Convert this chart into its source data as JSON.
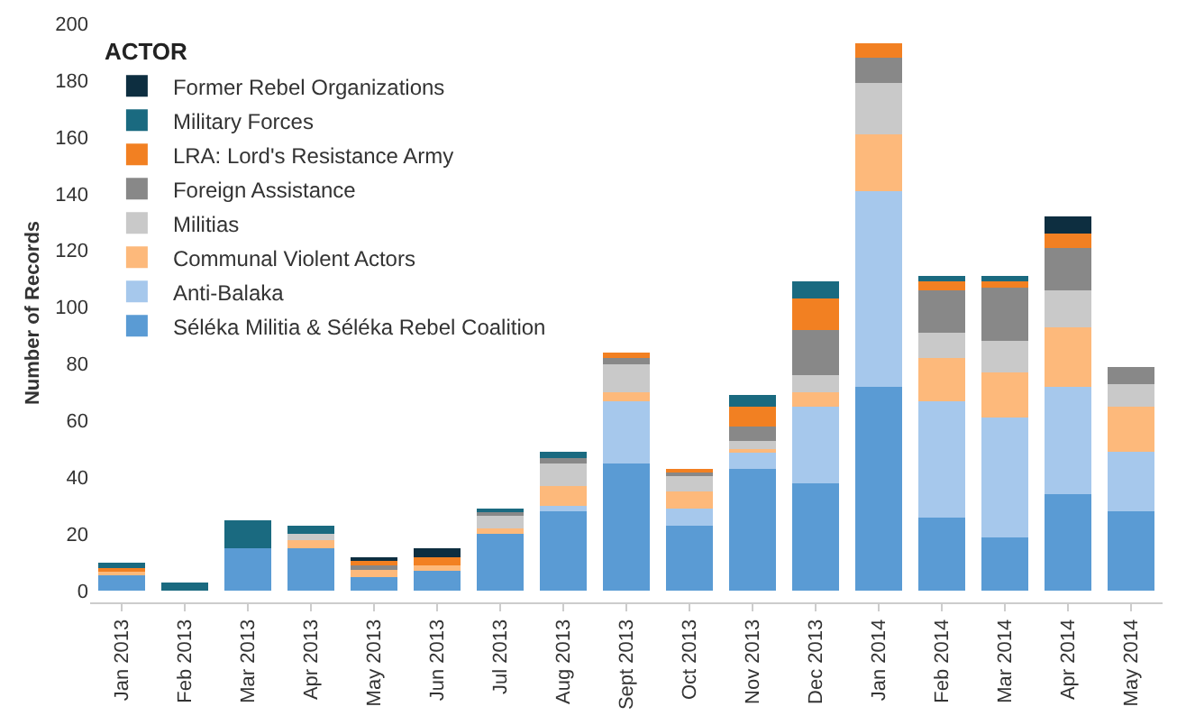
{
  "chart_data": {
    "type": "bar",
    "stacked": true,
    "ylabel": "Number of Records",
    "legend_title": "ACTOR",
    "legend": "top left",
    "grid": false,
    "categories": [
      "Jan 2013",
      "Feb 2013",
      "Mar 2013",
      "Apr 2013",
      "May 2013",
      "Jun 2013",
      "Jul 2013",
      "Aug 2013",
      "Sept 2013",
      "Oct 2013",
      "Nov 2013",
      "Dec 2013",
      "Jan 2014",
      "Feb 2014",
      "Mar 2014",
      "Apr 2014",
      "May 2014"
    ],
    "ylim": [
      -4,
      200
    ],
    "yticks": [
      0,
      20,
      40,
      60,
      80,
      100,
      120,
      140,
      160,
      180,
      200
    ],
    "series": [
      {
        "name": "Séléka Militia & Séléka Rebel Coalition",
        "color": "#5a9bd4",
        "values": [
          6,
          0,
          15,
          15,
          5,
          7,
          20,
          28,
          45,
          23,
          43,
          38,
          72,
          26,
          19,
          34,
          28
        ]
      },
      {
        "name": "Anti-Balaka",
        "color": "#a6c8ec",
        "values": [
          0,
          0,
          0,
          0,
          0,
          0,
          0,
          2,
          22,
          6,
          6,
          27,
          69,
          41,
          42,
          38,
          21
        ]
      },
      {
        "name": "Communal Violent Actors",
        "color": "#fdb97b",
        "values": [
          1,
          0,
          0,
          3,
          3,
          2,
          2,
          7,
          3,
          6,
          1,
          5,
          20,
          15,
          16,
          21,
          16
        ]
      },
      {
        "name": "Militias",
        "color": "#c9c9c9",
        "values": [
          0,
          0,
          0,
          2,
          0,
          0,
          5,
          8,
          10,
          6,
          3,
          6,
          18,
          9,
          11,
          13,
          8
        ]
      },
      {
        "name": "Foreign Assistance",
        "color": "#888888",
        "values": [
          0,
          0,
          0,
          0,
          1,
          0,
          1,
          2,
          2,
          1,
          5,
          16,
          9,
          15,
          19,
          15,
          6
        ]
      },
      {
        "name": "LRA: Lord's Resistance Army",
        "color": "#f28022",
        "values": [
          1,
          0,
          0,
          0,
          2,
          3,
          0,
          0,
          2,
          1,
          7,
          11,
          5,
          3,
          2,
          5,
          0
        ]
      },
      {
        "name": "Military Forces",
        "color": "#1a6a80",
        "values": [
          2,
          3,
          10,
          3,
          0,
          0,
          1,
          2,
          0,
          0,
          4,
          6,
          0,
          2,
          2,
          0,
          0
        ]
      },
      {
        "name": "Former Rebel Organizations",
        "color": "#0d2e40",
        "values": [
          0,
          0,
          0,
          0,
          1,
          3,
          0,
          0,
          0,
          0,
          0,
          0,
          0,
          0,
          0,
          6,
          0
        ]
      }
    ]
  }
}
